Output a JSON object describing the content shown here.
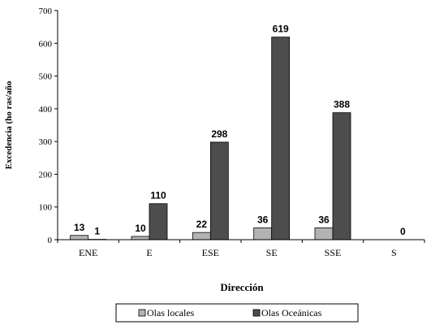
{
  "chart_data": {
    "type": "bar",
    "categories": [
      "ENE",
      "E",
      "ESE",
      "SE",
      "SSE",
      "S"
    ],
    "series": [
      {
        "name": "Olas locales",
        "values": [
          13,
          10,
          22,
          36,
          36,
          null
        ],
        "labels": [
          "13",
          "10",
          "22",
          "36",
          "36",
          ""
        ],
        "color": "#b3b3b3"
      },
      {
        "name": "Olas Oceánicas",
        "values": [
          1,
          110,
          298,
          619,
          388,
          0
        ],
        "labels": [
          "1",
          "110",
          "298",
          "619",
          "388",
          "0"
        ],
        "color": "#4d4d4d"
      }
    ],
    "xlabel": "Dirección",
    "ylabel": "Excedencia (ho ras/año",
    "ylim": [
      0,
      700
    ],
    "yticks": [
      "0",
      "100",
      "200",
      "300",
      "400",
      "500",
      "600",
      "700"
    ],
    "grid": false,
    "legend_position": "bottom"
  }
}
